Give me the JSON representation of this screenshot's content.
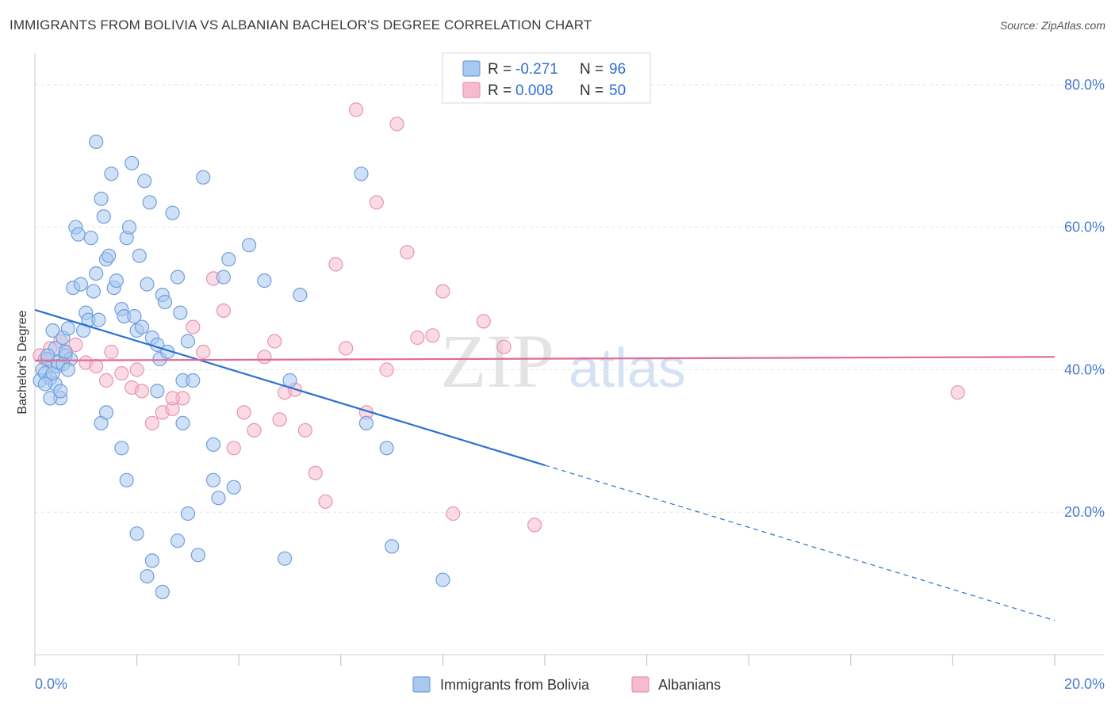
{
  "title": "IMMIGRANTS FROM BOLIVIA VS ALBANIAN BACHELOR'S DEGREE CORRELATION CHART",
  "source": "Source: ZipAtlas.com",
  "watermark": {
    "zip": "ZIP",
    "atlas": "atlas"
  },
  "colors": {
    "blue_fill": "#a9c8f0",
    "blue_stroke": "#6f9fdc",
    "blue_line": "#2a6fd4",
    "pink_fill": "#f6bccd",
    "pink_stroke": "#e895b0",
    "pink_line": "#e06a94",
    "axis_label": "#4a7bd0",
    "grid": "#e3e3e3"
  },
  "legend": {
    "rows": [
      {
        "r_label": "R =",
        "r_value": "-0.271",
        "n_label": "N =",
        "n_value": "96",
        "series": "blue"
      },
      {
        "r_label": "R =",
        "r_value": "0.008",
        "n_label": "N =",
        "n_value": "50",
        "series": "pink"
      }
    ]
  },
  "bottom_legend": [
    {
      "label": "Immigrants from Bolivia",
      "series": "blue"
    },
    {
      "label": "Albanians",
      "series": "pink"
    }
  ],
  "chart_data": {
    "type": "scatter",
    "title": "IMMIGRANTS FROM BOLIVIA VS ALBANIAN BACHELOR'S DEGREE CORRELATION CHART",
    "xlabel": "",
    "ylabel": "Bachelor's Degree",
    "xlim": [
      0,
      20
    ],
    "ylim": [
      0,
      83
    ],
    "x_ticks": [
      0,
      2,
      4,
      6,
      8,
      10,
      12,
      14,
      16,
      18,
      20
    ],
    "x_tick_labels": [
      {
        "value": 0,
        "label": "0.0%"
      },
      {
        "value": 20,
        "label": "20.0%"
      }
    ],
    "y_tick_labels": [
      {
        "value": 20,
        "label": "20.0%"
      },
      {
        "value": 40,
        "label": "40.0%"
      },
      {
        "value": 60,
        "label": "60.0%"
      },
      {
        "value": 80,
        "label": "80.0%"
      }
    ],
    "grid": true,
    "series": [
      {
        "name": "Immigrants from Bolivia",
        "color": "blue",
        "R": -0.271,
        "N": 96,
        "trend": {
          "x_start": 0,
          "y_start": 48.4,
          "x_solid_end": 10,
          "x_end": 20,
          "slope": -2.18
        },
        "points": [
          [
            0.1,
            38.5
          ],
          [
            0.15,
            40
          ],
          [
            0.2,
            39.5
          ],
          [
            0.25,
            41.5
          ],
          [
            0.3,
            38.8
          ],
          [
            0.35,
            45.5
          ],
          [
            0.4,
            43
          ],
          [
            0.45,
            40.5
          ],
          [
            0.5,
            36
          ],
          [
            0.55,
            44.5
          ],
          [
            0.6,
            42
          ],
          [
            0.65,
            45.8
          ],
          [
            0.7,
            41.5
          ],
          [
            0.75,
            51.5
          ],
          [
            0.8,
            60
          ],
          [
            0.85,
            59
          ],
          [
            0.9,
            52
          ],
          [
            0.95,
            45.5
          ],
          [
            1.0,
            48
          ],
          [
            1.05,
            47
          ],
          [
            1.1,
            58.5
          ],
          [
            1.15,
            51
          ],
          [
            1.2,
            53.5
          ],
          [
            1.25,
            47
          ],
          [
            1.3,
            64
          ],
          [
            1.35,
            61.5
          ],
          [
            1.4,
            55.5
          ],
          [
            1.45,
            56
          ],
          [
            1.5,
            67.5
          ],
          [
            1.55,
            51.5
          ],
          [
            1.6,
            52.5
          ],
          [
            1.7,
            48.5
          ],
          [
            1.75,
            47.5
          ],
          [
            1.8,
            58.5
          ],
          [
            1.85,
            60
          ],
          [
            1.9,
            69
          ],
          [
            1.95,
            47.5
          ],
          [
            2.0,
            45.5
          ],
          [
            2.05,
            56
          ],
          [
            2.1,
            46
          ],
          [
            2.15,
            66.5
          ],
          [
            2.2,
            52
          ],
          [
            2.25,
            63.5
          ],
          [
            2.3,
            44.5
          ],
          [
            2.4,
            43.5
          ],
          [
            2.45,
            41.5
          ],
          [
            2.5,
            50.5
          ],
          [
            2.55,
            49.5
          ],
          [
            2.6,
            42.5
          ],
          [
            2.7,
            62
          ],
          [
            2.8,
            53
          ],
          [
            2.85,
            48
          ],
          [
            2.9,
            38.5
          ],
          [
            3.0,
            44
          ],
          [
            3.1,
            38.5
          ],
          [
            3.3,
            67
          ],
          [
            3.5,
            29.5
          ],
          [
            3.6,
            22
          ],
          [
            3.7,
            53
          ],
          [
            3.8,
            55.5
          ],
          [
            4.2,
            57.5
          ],
          [
            4.5,
            52.5
          ],
          [
            5.0,
            38.5
          ],
          [
            5.2,
            50.5
          ],
          [
            6.4,
            67.5
          ],
          [
            6.5,
            32.5
          ],
          [
            6.9,
            29
          ],
          [
            7.0,
            15.2
          ],
          [
            8.0,
            10.5
          ],
          [
            1.2,
            72
          ],
          [
            0.3,
            36
          ],
          [
            0.4,
            38
          ],
          [
            0.5,
            37
          ],
          [
            0.6,
            42.5
          ],
          [
            1.3,
            32.5
          ],
          [
            1.4,
            34
          ],
          [
            1.7,
            29
          ],
          [
            1.8,
            24.5
          ],
          [
            2.0,
            17
          ],
          [
            2.2,
            11
          ],
          [
            2.3,
            13.2
          ],
          [
            2.5,
            8.8
          ],
          [
            2.8,
            16
          ],
          [
            3.0,
            19.8
          ],
          [
            3.2,
            14
          ],
          [
            3.5,
            24.5
          ],
          [
            3.9,
            23.5
          ],
          [
            4.9,
            13.5
          ],
          [
            2.4,
            37
          ],
          [
            2.9,
            32.5
          ],
          [
            0.2,
            38
          ],
          [
            0.25,
            42
          ],
          [
            0.35,
            39.5
          ],
          [
            0.45,
            41
          ],
          [
            0.55,
            40.8
          ],
          [
            0.65,
            40
          ]
        ]
      },
      {
        "name": "Albanians",
        "color": "pink",
        "R": 0.008,
        "N": 50,
        "trend": {
          "x_start": 0,
          "y_start": 41.3,
          "x_end": 20,
          "y_end": 41.8
        },
        "points": [
          [
            0.1,
            42
          ],
          [
            0.2,
            41.5
          ],
          [
            0.3,
            43
          ],
          [
            0.5,
            44
          ],
          [
            0.6,
            42.5
          ],
          [
            0.8,
            43.5
          ],
          [
            1.0,
            41
          ],
          [
            1.2,
            40.5
          ],
          [
            1.4,
            38.5
          ],
          [
            1.5,
            42.5
          ],
          [
            1.7,
            39.5
          ],
          [
            1.9,
            37.5
          ],
          [
            2.1,
            37
          ],
          [
            2.3,
            32.5
          ],
          [
            2.5,
            34
          ],
          [
            2.7,
            34.5
          ],
          [
            2.9,
            36
          ],
          [
            3.1,
            46
          ],
          [
            3.3,
            42.5
          ],
          [
            3.5,
            52.8
          ],
          [
            3.7,
            48.3
          ],
          [
            3.9,
            29
          ],
          [
            4.1,
            34
          ],
          [
            4.3,
            31.5
          ],
          [
            4.5,
            41.8
          ],
          [
            4.7,
            44
          ],
          [
            4.9,
            36.8
          ],
          [
            5.1,
            37.2
          ],
          [
            5.3,
            31.5
          ],
          [
            5.5,
            25.5
          ],
          [
            5.7,
            21.5
          ],
          [
            5.9,
            54.8
          ],
          [
            6.1,
            43
          ],
          [
            6.3,
            76.5
          ],
          [
            6.5,
            34
          ],
          [
            6.7,
            63.5
          ],
          [
            6.9,
            40
          ],
          [
            7.1,
            74.5
          ],
          [
            7.3,
            56.5
          ],
          [
            7.5,
            44.5
          ],
          [
            7.8,
            44.8
          ],
          [
            8.0,
            51
          ],
          [
            8.2,
            19.8
          ],
          [
            8.8,
            46.8
          ],
          [
            9.2,
            43.2
          ],
          [
            9.8,
            18.2
          ],
          [
            18.1,
            36.8
          ],
          [
            2.0,
            40
          ],
          [
            2.7,
            36
          ],
          [
            4.8,
            33
          ]
        ]
      }
    ]
  }
}
